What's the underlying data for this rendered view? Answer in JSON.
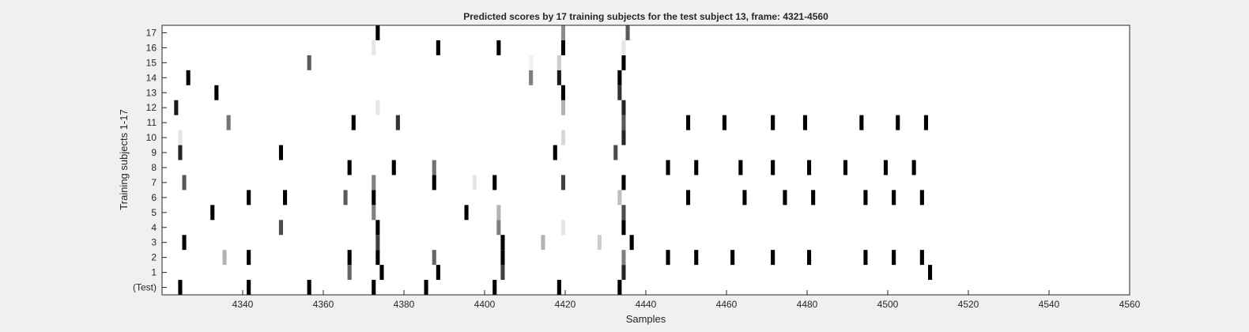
{
  "chart_data": {
    "type": "heatmap",
    "title": "Predicted scores by 17 training subjects for the test subject 13, frame: 4321-4560",
    "xlabel": "Samples",
    "ylabel": "Training subjects 1-17",
    "xlim": [
      4321,
      4560
    ],
    "x_ticks": [
      4340,
      4360,
      4380,
      4400,
      4420,
      4440,
      4460,
      4480,
      4500,
      4520,
      4540,
      4560
    ],
    "rows": [
      "(Test)",
      "1",
      "2",
      "3",
      "4",
      "5",
      "6",
      "7",
      "8",
      "9",
      "10",
      "11",
      "12",
      "13",
      "14",
      "15",
      "16",
      "17"
    ],
    "colormap": "gray-reversed",
    "value_range": [
      0,
      1
    ],
    "cells": [
      {
        "row": "(Test)",
        "marks": [
          [
            4325,
            1
          ],
          [
            4342,
            1
          ],
          [
            4357,
            1
          ],
          [
            4373,
            1
          ],
          [
            4386,
            1
          ],
          [
            4403,
            1
          ],
          [
            4419,
            1
          ],
          [
            4434,
            1
          ]
        ]
      },
      {
        "row": "1",
        "marks": [
          [
            4367,
            0.6
          ],
          [
            4375,
            1
          ],
          [
            4389,
            1
          ],
          [
            4405,
            0.75
          ],
          [
            4435,
            0.85
          ],
          [
            4511,
            1
          ]
        ]
      },
      {
        "row": "2",
        "marks": [
          [
            4336,
            0.3
          ],
          [
            4342,
            1
          ],
          [
            4367,
            1
          ],
          [
            4374,
            1
          ],
          [
            4388,
            0.6
          ],
          [
            4405,
            1
          ],
          [
            4435,
            0.5
          ],
          [
            4446,
            1
          ],
          [
            4453,
            1
          ],
          [
            4462,
            1
          ],
          [
            4472,
            1
          ],
          [
            4481,
            1
          ],
          [
            4495,
            1
          ],
          [
            4502,
            1
          ],
          [
            4509,
            1
          ]
        ]
      },
      {
        "row": "3",
        "marks": [
          [
            4326,
            1
          ],
          [
            4374,
            0.75
          ],
          [
            4405,
            1
          ],
          [
            4415,
            0.3
          ],
          [
            4429,
            0.2
          ],
          [
            4437,
            1
          ]
        ]
      },
      {
        "row": "4",
        "marks": [
          [
            4350,
            0.7
          ],
          [
            4374,
            1
          ],
          [
            4404,
            0.5
          ],
          [
            4420,
            0.1
          ],
          [
            4435,
            1
          ]
        ]
      },
      {
        "row": "5",
        "marks": [
          [
            4333,
            1
          ],
          [
            4373,
            0.5
          ],
          [
            4396,
            1
          ],
          [
            4404,
            0.3
          ],
          [
            4435,
            0.7
          ]
        ]
      },
      {
        "row": "6",
        "marks": [
          [
            4342,
            1
          ],
          [
            4351,
            1
          ],
          [
            4366,
            0.65
          ],
          [
            4373,
            1
          ],
          [
            4434,
            0.25
          ],
          [
            4451,
            1
          ],
          [
            4465,
            1
          ],
          [
            4475,
            1
          ],
          [
            4482,
            1
          ],
          [
            4495,
            1
          ],
          [
            4502,
            1
          ],
          [
            4509,
            1
          ]
        ]
      },
      {
        "row": "7",
        "marks": [
          [
            4326,
            0.65
          ],
          [
            4373,
            0.5
          ],
          [
            4388,
            1
          ],
          [
            4398,
            0.1
          ],
          [
            4403,
            1
          ],
          [
            4420,
            0.75
          ],
          [
            4435,
            1
          ]
        ]
      },
      {
        "row": "8",
        "marks": [
          [
            4367,
            1
          ],
          [
            4378,
            1
          ],
          [
            4388,
            0.55
          ],
          [
            4446,
            1
          ],
          [
            4453,
            1
          ],
          [
            4464,
            1
          ],
          [
            4472,
            1
          ],
          [
            4481,
            1
          ],
          [
            4490,
            1
          ],
          [
            4500,
            1
          ],
          [
            4507,
            1
          ]
        ]
      },
      {
        "row": "9",
        "marks": [
          [
            4325,
            0.85
          ],
          [
            4350,
            1
          ],
          [
            4418,
            1
          ],
          [
            4433,
            0.7
          ]
        ]
      },
      {
        "row": "10",
        "marks": [
          [
            4325,
            0.1
          ],
          [
            4420,
            0.15
          ],
          [
            4435,
            0.85
          ]
        ]
      },
      {
        "row": "11",
        "marks": [
          [
            4337,
            0.55
          ],
          [
            4368,
            1
          ],
          [
            4379,
            0.8
          ],
          [
            4435,
            0.65
          ],
          [
            4451,
            1
          ],
          [
            4460,
            1
          ],
          [
            4472,
            1
          ],
          [
            4480,
            1
          ],
          [
            4494,
            1
          ],
          [
            4503,
            1
          ],
          [
            4510,
            1
          ]
        ]
      },
      {
        "row": "12",
        "marks": [
          [
            4324,
            0.9
          ],
          [
            4374,
            0.1
          ],
          [
            4420,
            0.3
          ],
          [
            4435,
            0.85
          ]
        ]
      },
      {
        "row": "13",
        "marks": [
          [
            4334,
            1
          ],
          [
            4420,
            1
          ],
          [
            4434,
            0.8
          ]
        ]
      },
      {
        "row": "14",
        "marks": [
          [
            4327,
            1
          ],
          [
            4412,
            0.5
          ],
          [
            4419,
            0.9
          ],
          [
            4434,
            1
          ]
        ]
      },
      {
        "row": "15",
        "marks": [
          [
            4357,
            0.65
          ],
          [
            4412,
            0.05
          ],
          [
            4419,
            0.2
          ],
          [
            4435,
            1
          ]
        ]
      },
      {
        "row": "16",
        "marks": [
          [
            4373,
            0.1
          ],
          [
            4389,
            1
          ],
          [
            4404,
            1
          ],
          [
            4420,
            1
          ],
          [
            4435,
            0.1
          ]
        ]
      },
      {
        "row": "17",
        "marks": [
          [
            4374,
            1
          ],
          [
            4420,
            0.45
          ],
          [
            4436,
            0.65
          ]
        ]
      }
    ]
  }
}
